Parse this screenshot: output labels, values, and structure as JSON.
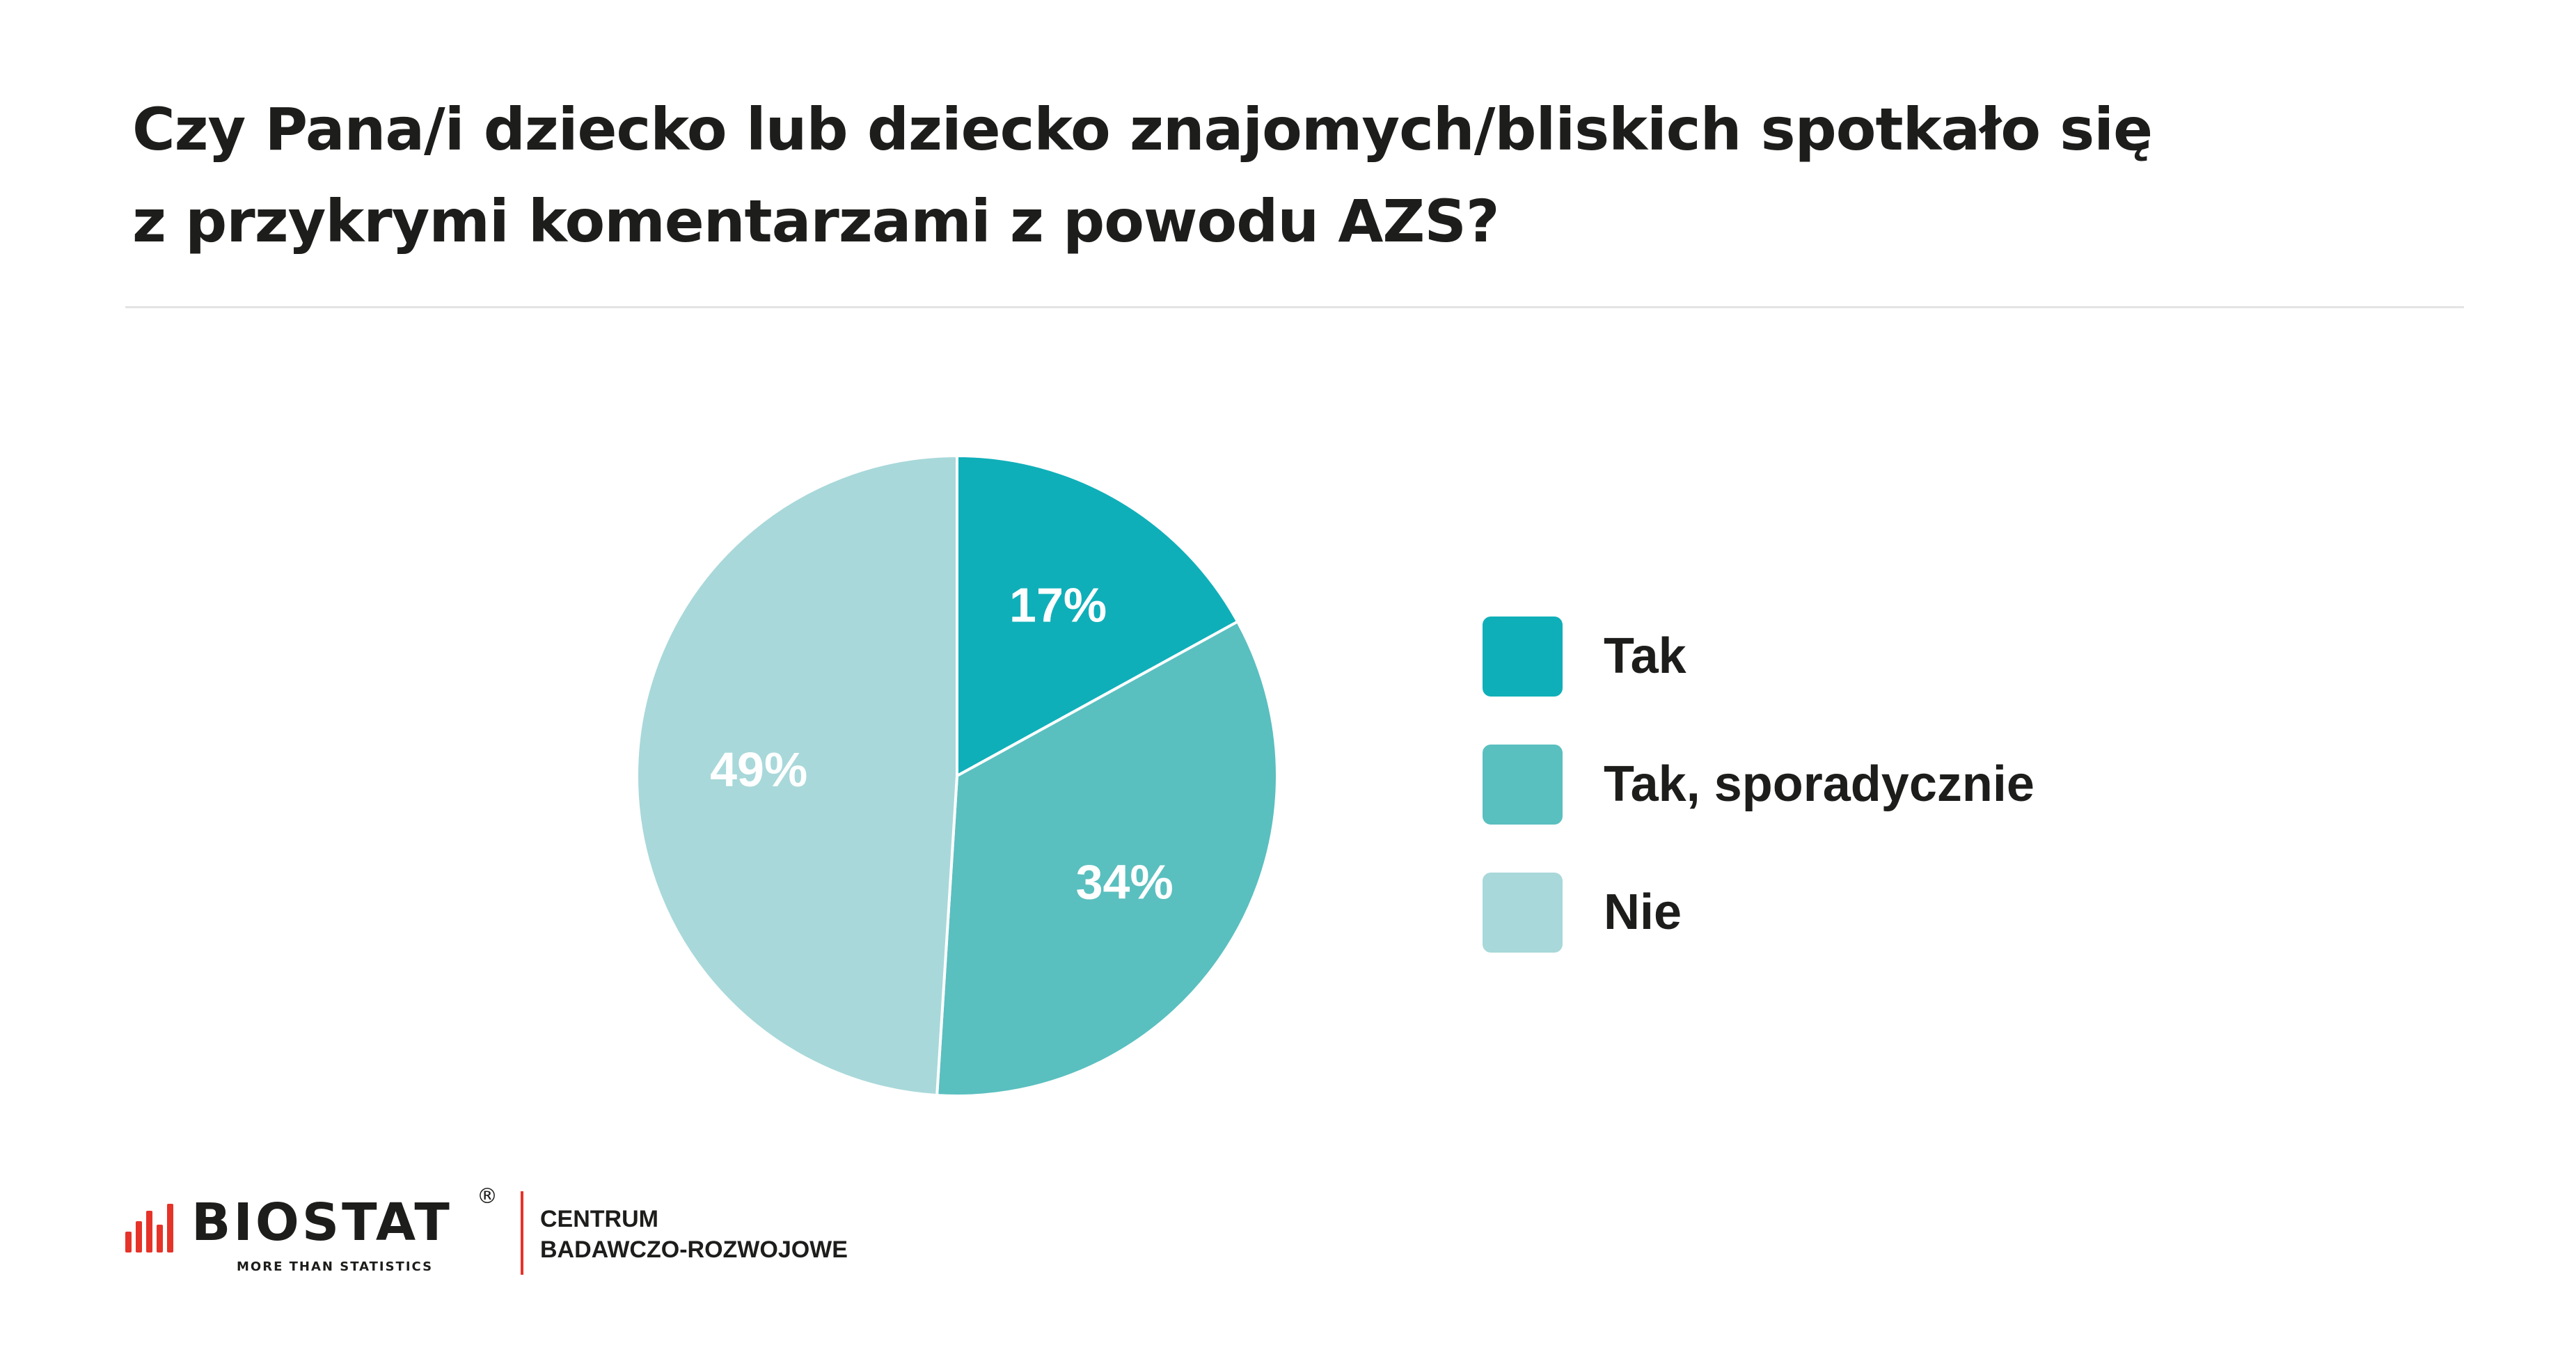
{
  "title": {
    "line1": "Czy Pana/i dziecko lub dziecko znajomych/bliskich spotkało się",
    "line2": "z przykrymi komentarzami z powodu AZS?"
  },
  "chart_data": {
    "type": "pie",
    "title": "Czy Pana/i dziecko lub dziecko znajomych/bliskich spotkało się z przykrymi komentarzami z powodu AZS?",
    "categories": [
      "Tak",
      "Tak, sporadycznie",
      "Nie"
    ],
    "values": [
      17,
      34,
      49
    ],
    "value_labels": [
      "17%",
      "34%",
      "49%"
    ],
    "colors": [
      "#0fafb9",
      "#5abfbf",
      "#a8d8da"
    ],
    "start_angle": "12 o'clock",
    "direction": "clockwise",
    "legend_placement": "right"
  },
  "legend": {
    "items": [
      {
        "label": "Tak",
        "color": "#0fafb9"
      },
      {
        "label": "Tak, sporadycznie",
        "color": "#5abfbf"
      },
      {
        "label": "Nie",
        "color": "#a8d8da"
      }
    ]
  },
  "footer": {
    "brand": "BIOSTAT",
    "registered_mark": "®",
    "tagline": "MORE THAN STATISTICS",
    "unit_line1": "CENTRUM",
    "unit_line2": "BADAWCZO-ROZWOJOWE",
    "accent_color": "#e63329"
  }
}
